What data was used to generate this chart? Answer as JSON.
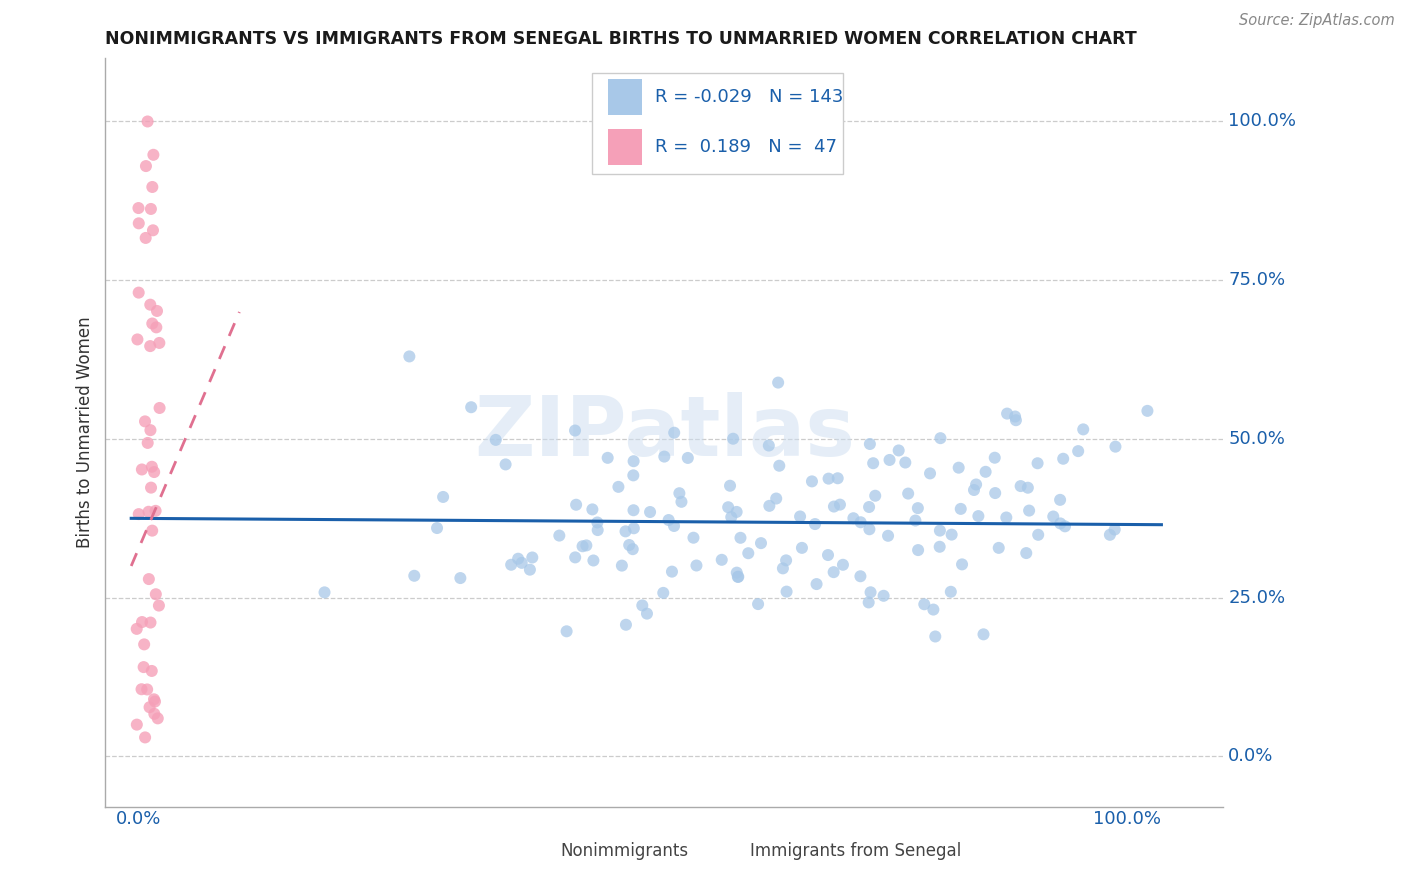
{
  "title": "NONIMMIGRANTS VS IMMIGRANTS FROM SENEGAL BIRTHS TO UNMARRIED WOMEN CORRELATION CHART",
  "source": "Source: ZipAtlas.com",
  "ylabel": "Births to Unmarried Women",
  "blue_R": "-0.029",
  "blue_N": "143",
  "pink_R": "0.189",
  "pink_N": "47",
  "blue_scatter_color": "#a8c8e8",
  "blue_line_color": "#1a5faa",
  "pink_scatter_color": "#f5a0b8",
  "pink_line_color": "#e07090",
  "grid_color": "#cccccc",
  "title_color": "#1a1a1a",
  "label_color": "#1a5faa",
  "source_color": "#888888",
  "legend_text_color": "#1a5faa",
  "bottom_text_color": "#444444",
  "ytick_vals": [
    0.0,
    0.25,
    0.5,
    0.75,
    1.0
  ],
  "ytick_labels": [
    "0.0%",
    "25.0%",
    "50.0%",
    "75.0%",
    "100.0%"
  ],
  "xtick_left": "0.0%",
  "xtick_right": "100.0%",
  "xlim": [
    -0.025,
    1.06
  ],
  "ylim": [
    -0.08,
    1.1
  ],
  "watermark": "ZIPatlas",
  "blue_trend_x0": 0.0,
  "blue_trend_x1": 1.0,
  "blue_trend_y0": 0.375,
  "blue_trend_y1": 0.365,
  "pink_trend_x0": 0.0,
  "pink_trend_x1": 0.105,
  "pink_trend_y0": 0.3,
  "pink_trend_y1": 0.7
}
